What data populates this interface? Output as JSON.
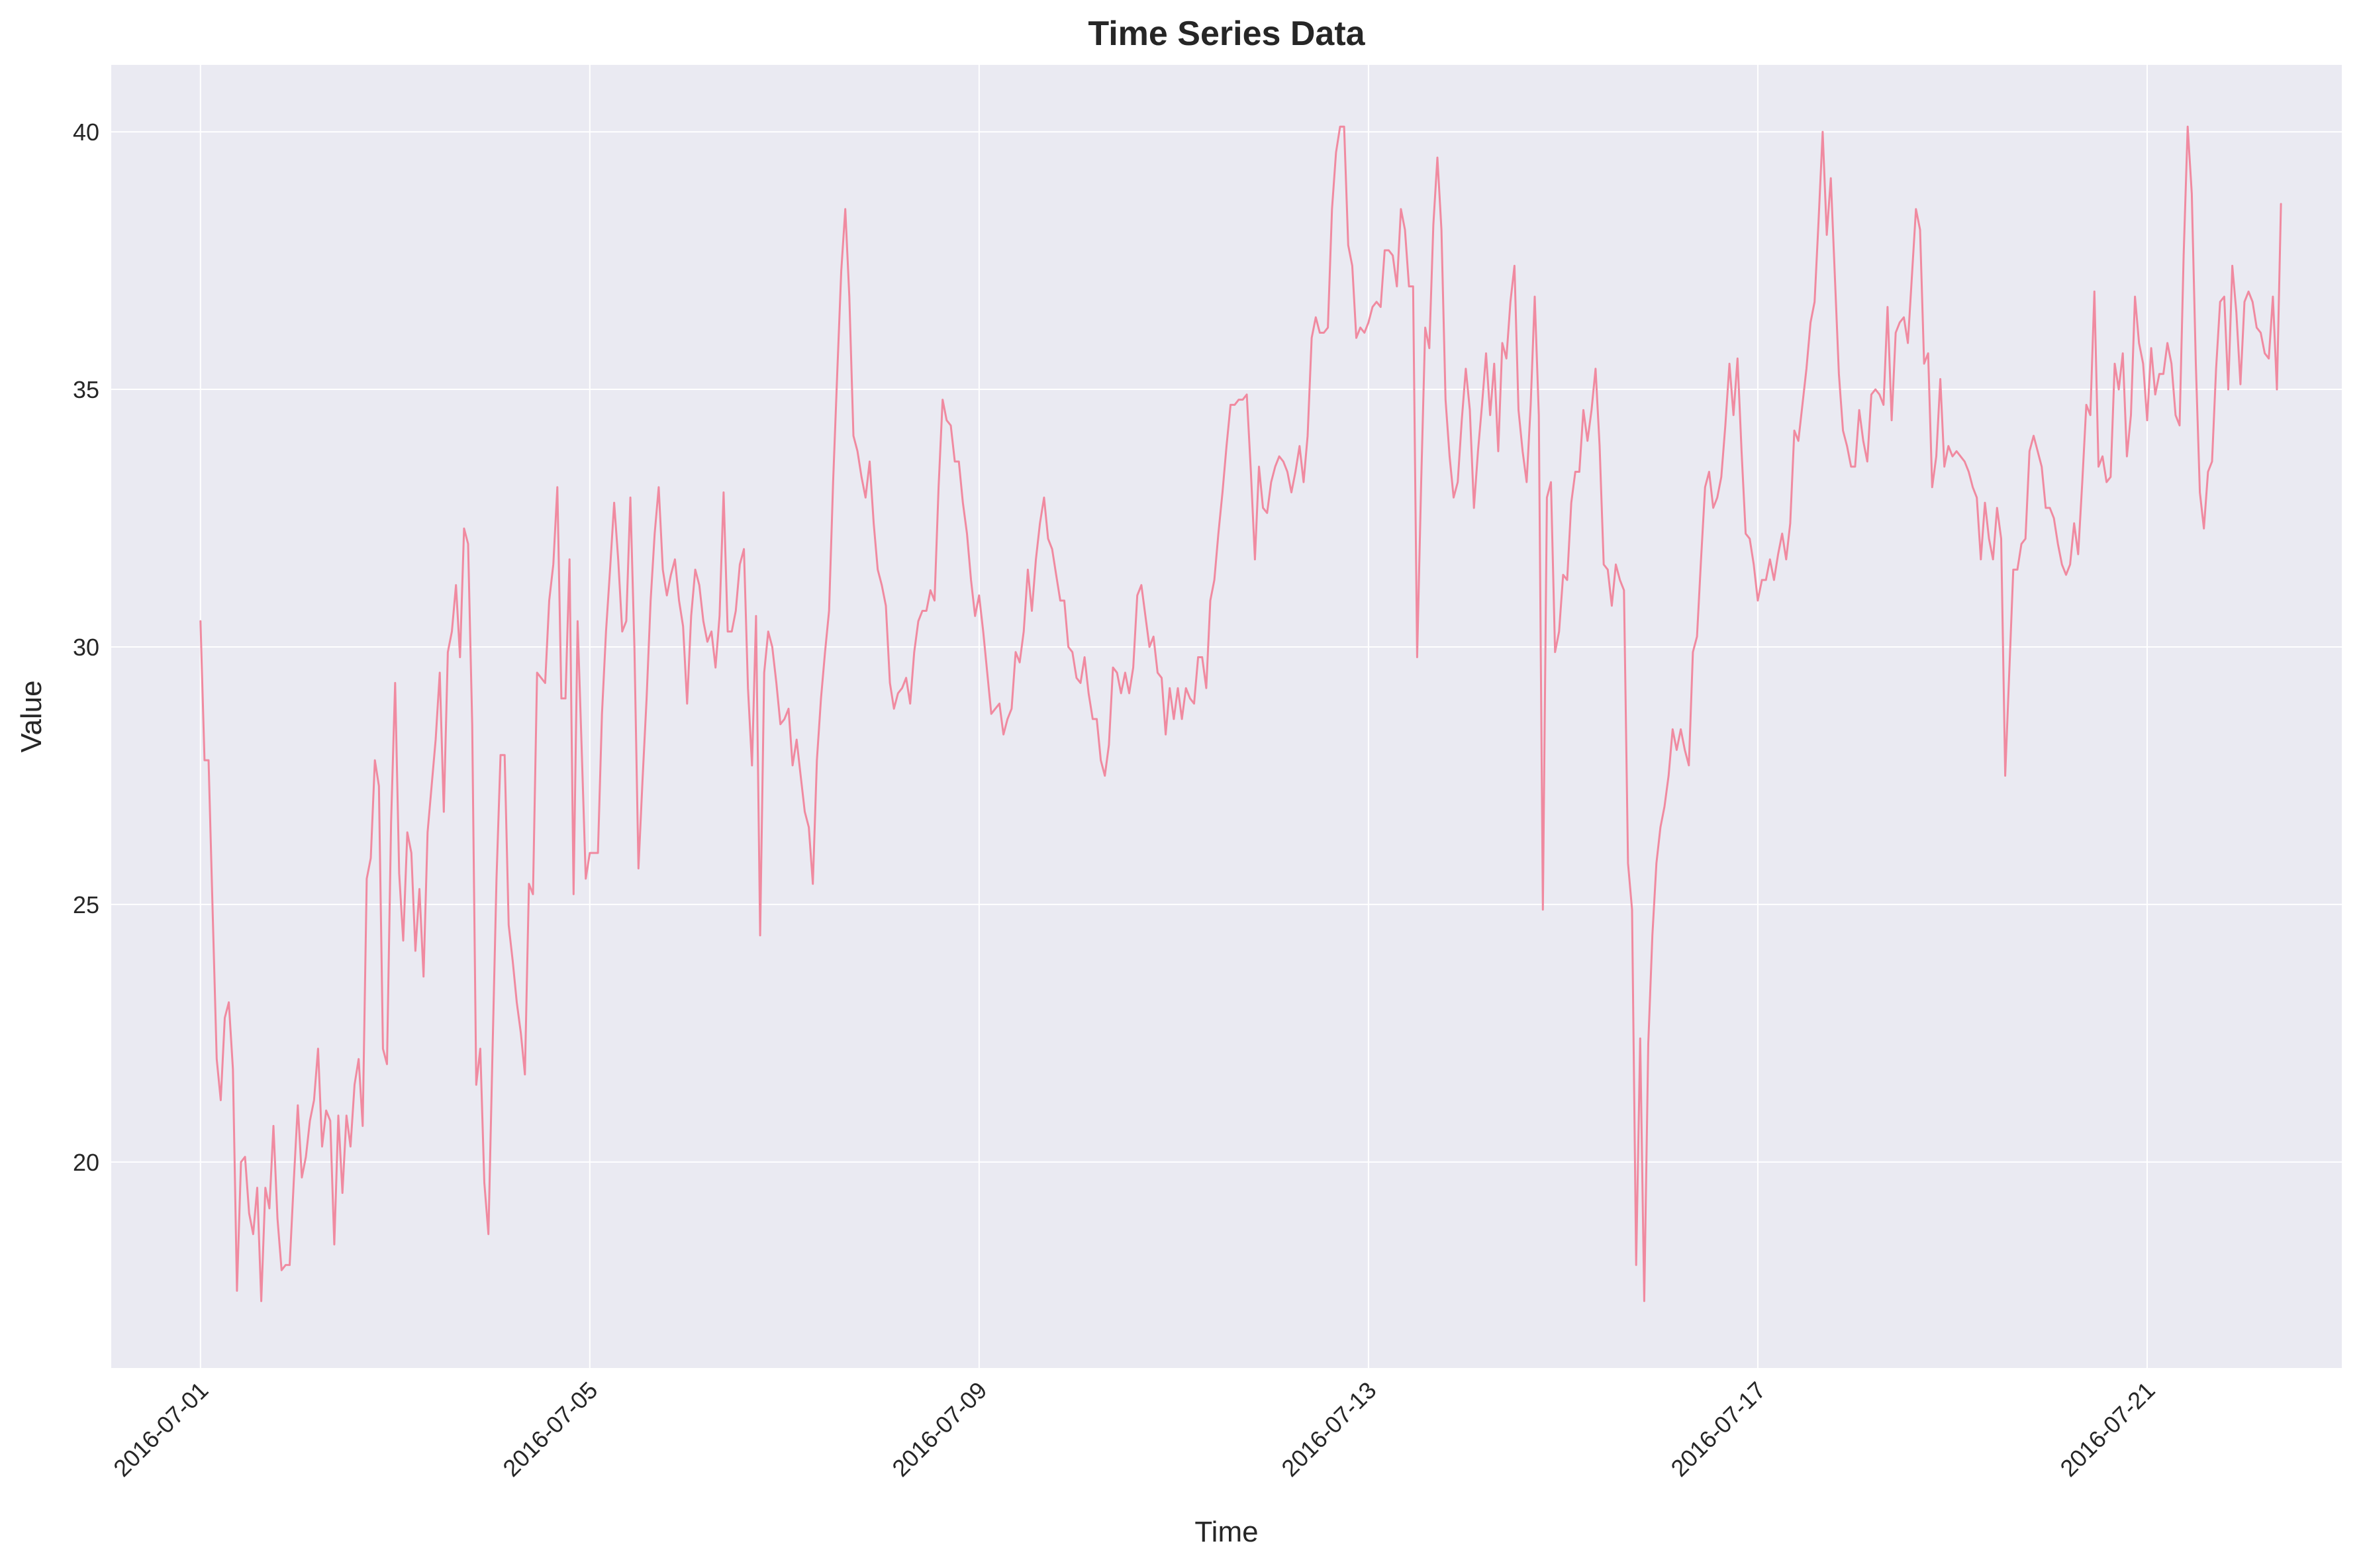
{
  "chart_data": {
    "type": "line",
    "title": "Time Series Data",
    "xlabel": "Time",
    "ylabel": "Value",
    "grid": true,
    "legend": "none",
    "colors": {
      "plot_background": "#eaeaf2",
      "grid": "#ffffff",
      "line": "#f08aa0",
      "text": "#262626"
    },
    "xlim": [
      "2016-06-30T02:00",
      "2016-07-23T00:00"
    ],
    "ylim": [
      16.0,
      41.3
    ],
    "x_ticks": [
      "2016-07-01",
      "2016-07-05",
      "2016-07-09",
      "2016-07-13",
      "2016-07-17",
      "2016-07-21"
    ],
    "y_ticks": [
      20,
      25,
      30,
      35,
      40
    ],
    "y_tick_labels": [
      "20",
      "25",
      "30",
      "35",
      "40"
    ],
    "series": [
      {
        "start": "2016-07-01T00:00",
        "interval_hours": 1,
        "values": [
          30.5,
          27.8,
          27.8,
          24.9,
          22.0,
          21.2,
          22.8,
          23.1,
          21.8,
          17.5,
          20.0,
          20.1,
          19.0,
          18.6,
          19.5,
          17.3,
          19.5,
          19.1,
          20.7,
          18.9,
          17.9,
          18.0,
          18.0,
          19.6,
          21.1,
          19.7,
          20.1,
          20.8,
          21.2,
          22.2,
          20.3,
          21.0,
          20.8,
          18.4,
          20.9,
          19.4,
          20.9,
          20.3,
          21.5,
          22.0,
          20.7,
          25.5,
          25.9,
          27.8,
          27.3,
          22.2,
          21.9,
          26.6,
          29.3,
          25.6,
          24.3,
          26.4,
          26.0,
          24.1,
          25.3,
          23.6,
          26.4,
          27.3,
          28.2,
          29.5,
          26.8,
          29.9,
          30.3,
          31.2,
          29.8,
          32.3,
          32.0,
          28.5,
          21.5,
          22.2,
          19.6,
          18.6,
          22.1,
          25.5,
          27.9,
          27.9,
          24.6,
          23.9,
          23.1,
          22.5,
          21.7,
          25.4,
          25.2,
          29.5,
          29.4,
          29.3,
          30.9,
          31.6,
          33.1,
          29.0,
          29.0,
          31.7,
          25.2,
          30.5,
          28.0,
          25.5,
          26.0,
          26.0,
          26.0,
          28.7,
          30.3,
          31.5,
          32.8,
          31.7,
          30.3,
          30.5,
          32.9,
          30.0,
          25.7,
          27.4,
          29.0,
          30.9,
          32.2,
          33.1,
          31.5,
          31.0,
          31.4,
          31.7,
          30.9,
          30.4,
          28.9,
          30.6,
          31.5,
          31.2,
          30.5,
          30.1,
          30.3,
          29.6,
          30.6,
          33.0,
          30.3,
          30.3,
          30.7,
          31.6,
          31.9,
          29.2,
          27.7,
          30.6,
          24.4,
          29.5,
          30.3,
          30.0,
          29.3,
          28.5,
          28.6,
          28.8,
          27.7,
          28.2,
          27.5,
          26.8,
          26.5,
          25.4,
          27.8,
          29.0,
          29.9,
          30.7,
          33.2,
          35.3,
          37.3,
          38.5,
          36.8,
          34.1,
          33.8,
          33.3,
          32.9,
          33.6,
          32.4,
          31.5,
          31.2,
          30.8,
          29.3,
          28.8,
          29.1,
          29.2,
          29.4,
          28.9,
          29.9,
          30.5,
          30.7,
          30.7,
          31.1,
          30.9,
          33.1,
          34.8,
          34.4,
          34.3,
          33.6,
          33.6,
          32.8,
          32.2,
          31.3,
          30.6,
          31.0,
          30.3,
          29.5,
          28.7,
          28.8,
          28.9,
          28.3,
          28.6,
          28.8,
          29.9,
          29.7,
          30.3,
          31.5,
          30.7,
          31.7,
          32.4,
          32.9,
          32.1,
          31.9,
          31.4,
          30.9,
          30.9,
          30.0,
          29.9,
          29.4,
          29.3,
          29.8,
          29.1,
          28.6,
          28.6,
          27.8,
          27.5,
          28.1,
          29.6,
          29.5,
          29.1,
          29.5,
          29.1,
          29.6,
          31.0,
          31.2,
          30.6,
          30.0,
          30.2,
          29.5,
          29.4,
          28.3,
          29.2,
          28.6,
          29.2,
          28.6,
          29.2,
          29.0,
          28.9,
          29.8,
          29.8,
          29.2,
          30.9,
          31.3,
          32.2,
          33.0,
          33.9,
          34.7,
          34.7,
          34.8,
          34.8,
          34.9,
          33.4,
          31.7,
          33.5,
          32.7,
          32.6,
          33.2,
          33.5,
          33.7,
          33.6,
          33.4,
          33.0,
          33.4,
          33.9,
          33.2,
          34.1,
          36.0,
          36.4,
          36.1,
          36.1,
          36.2,
          38.5,
          39.6,
          40.1,
          40.1,
          37.8,
          37.4,
          36.0,
          36.2,
          36.1,
          36.3,
          36.6,
          36.7,
          36.6,
          37.7,
          37.7,
          37.6,
          37.0,
          38.5,
          38.1,
          37.0,
          37.0,
          29.8,
          33.2,
          36.2,
          35.8,
          38.2,
          39.5,
          38.1,
          34.8,
          33.7,
          32.9,
          33.2,
          34.4,
          35.4,
          34.6,
          32.7,
          33.8,
          34.7,
          35.7,
          34.5,
          35.5,
          33.8,
          35.9,
          35.6,
          36.7,
          37.4,
          34.6,
          33.8,
          33.2,
          34.7,
          36.8,
          34.5,
          24.9,
          32.9,
          33.2,
          29.9,
          30.3,
          31.4,
          31.3,
          32.8,
          33.4,
          33.4,
          34.6,
          34.0,
          34.6,
          35.4,
          33.9,
          31.6,
          31.5,
          30.8,
          31.6,
          31.3,
          31.1,
          25.8,
          24.9,
          18.0,
          22.4,
          17.3,
          22.3,
          24.4,
          25.8,
          26.5,
          26.9,
          27.5,
          28.4,
          28.0,
          28.4,
          28.0,
          27.7,
          29.9,
          30.2,
          31.7,
          33.1,
          33.4,
          32.7,
          32.9,
          33.3,
          34.3,
          35.5,
          34.5,
          35.6,
          33.8,
          32.2,
          32.1,
          31.6,
          30.9,
          31.3,
          31.3,
          31.7,
          31.3,
          31.8,
          32.2,
          31.7,
          32.4,
          34.2,
          34.0,
          34.7,
          35.4,
          36.3,
          36.7,
          38.3,
          40.0,
          38.0,
          39.1,
          37.2,
          35.3,
          34.2,
          33.9,
          33.5,
          33.5,
          34.6,
          34.0,
          33.6,
          34.9,
          35.0,
          34.9,
          34.7,
          36.6,
          34.4,
          36.1,
          36.3,
          36.4,
          35.9,
          37.2,
          38.5,
          38.1,
          35.5,
          35.7,
          33.1,
          33.7,
          35.2,
          33.5,
          33.9,
          33.7,
          33.8,
          33.7,
          33.6,
          33.4,
          33.1,
          32.9,
          31.7,
          32.8,
          32.1,
          31.7,
          32.7,
          32.1,
          27.5,
          29.5,
          31.5,
          31.5,
          32.0,
          32.1,
          33.8,
          34.1,
          33.8,
          33.5,
          32.7,
          32.7,
          32.5,
          32.0,
          31.6,
          31.4,
          31.6,
          32.4,
          31.8,
          33.2,
          34.7,
          34.5,
          36.9,
          33.5,
          33.7,
          33.2,
          33.3,
          35.5,
          35.0,
          35.7,
          33.7,
          34.5,
          36.8,
          35.9,
          35.5,
          34.4,
          35.8,
          34.9,
          35.3,
          35.3,
          35.9,
          35.5,
          34.5,
          34.3,
          37.6,
          40.1,
          38.8,
          35.5,
          33.0,
          32.3,
          33.4,
          33.6,
          35.4,
          36.7,
          36.8,
          35.0,
          37.4,
          36.5,
          35.1,
          36.7,
          36.9,
          36.7,
          36.2,
          36.1,
          35.7,
          35.6,
          36.8,
          35.0,
          38.6
        ]
      }
    ]
  }
}
